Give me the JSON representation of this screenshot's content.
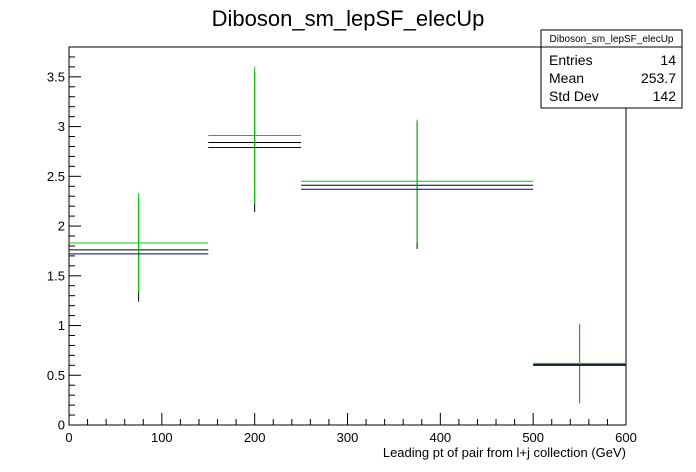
{
  "chart_data": {
    "type": "histogram",
    "title": "Diboson_sm_lepSF_elecUp",
    "xlabel": "Leading pt of pair from l+j collection (GeV)",
    "ylabel": "",
    "xlim": [
      0,
      600
    ],
    "ylim": [
      0,
      3.8
    ],
    "x_ticks": [
      "0",
      "100",
      "200",
      "300",
      "400",
      "500",
      "600"
    ],
    "y_ticks": [
      "0",
      "0.5",
      "1",
      "1.5",
      "2",
      "2.5",
      "3",
      "3.5"
    ],
    "bins": [
      [
        0,
        150
      ],
      [
        150,
        250
      ],
      [
        250,
        500
      ],
      [
        500,
        600
      ]
    ],
    "series": [
      {
        "color": "#000000",
        "values": [
          1.76,
          2.84,
          2.41,
          0.61
        ],
        "errors": [
          0.52,
          0.7,
          0.64,
          0.39
        ]
      },
      {
        "color": "#00cc00",
        "values": [
          1.83,
          2.91,
          2.45,
          0.62
        ],
        "errors": [
          0.5,
          0.69,
          0.62,
          0.4
        ]
      },
      {
        "color": "#000099",
        "values": [
          1.72,
          2.79,
          2.37,
          0.6
        ],
        "errors": [
          0.0,
          0.0,
          0.0,
          0.0
        ]
      }
    ],
    "grid": false,
    "legend": {
      "position": "top-right",
      "name": "Diboson_sm_lepSF_elecUp",
      "entries_label": "Entries",
      "entries_value": "14",
      "mean_label": "Mean",
      "mean_value": "253.7",
      "stddev_label": "Std Dev",
      "stddev_value": "142"
    }
  }
}
